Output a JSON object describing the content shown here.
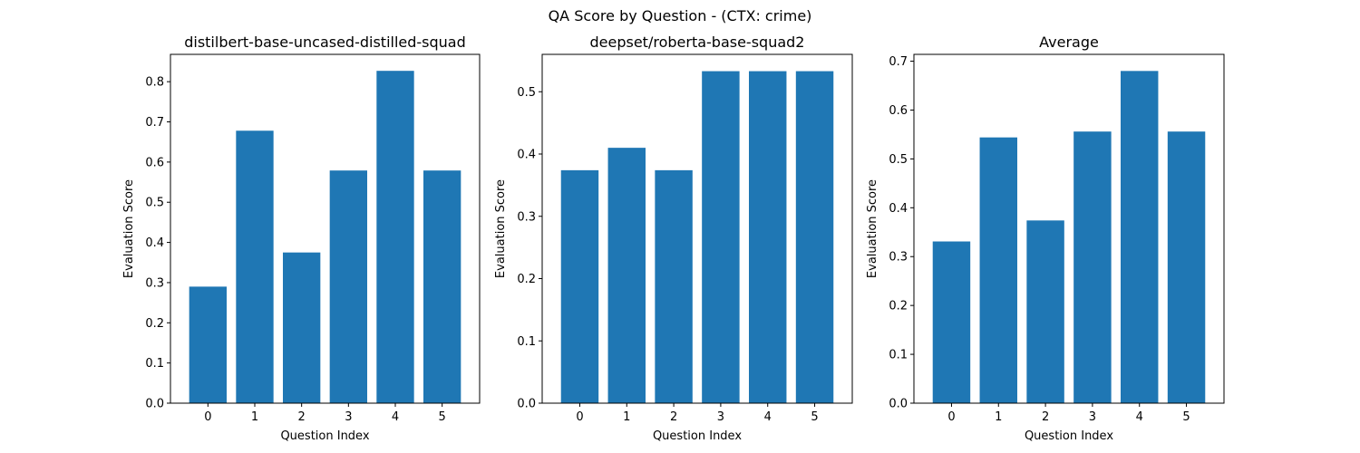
{
  "figure": {
    "title": "QA Score by Question - (CTX: crime)"
  },
  "colors": {
    "bar": "#1f77b4",
    "axis": "#000000",
    "background": "#ffffff"
  },
  "chart_data": [
    {
      "type": "bar",
      "title": "distilbert-base-uncased-distilled-squad",
      "xlabel": "Question Index",
      "ylabel": "Evaluation Score",
      "categories": [
        "0",
        "1",
        "2",
        "3",
        "4",
        "5"
      ],
      "values": [
        0.29,
        0.678,
        0.375,
        0.579,
        0.827,
        0.579
      ],
      "ylim": [
        0,
        0.868
      ],
      "yticks": [
        0.0,
        0.1,
        0.2,
        0.3,
        0.4,
        0.5,
        0.6,
        0.7,
        0.8
      ],
      "ytick_labels": [
        "0.0",
        "0.1",
        "0.2",
        "0.3",
        "0.4",
        "0.5",
        "0.6",
        "0.7",
        "0.8"
      ],
      "grid": false,
      "legend": "none"
    },
    {
      "type": "bar",
      "title": "deepset/roberta-base-squad2",
      "xlabel": "Question Index",
      "ylabel": "Evaluation Score",
      "categories": [
        "0",
        "1",
        "2",
        "3",
        "4",
        "5"
      ],
      "values": [
        0.374,
        0.41,
        0.374,
        0.533,
        0.533,
        0.533
      ],
      "ylim": [
        0,
        0.56
      ],
      "yticks": [
        0.0,
        0.1,
        0.2,
        0.3,
        0.4,
        0.5
      ],
      "ytick_labels": [
        "0.0",
        "0.1",
        "0.2",
        "0.3",
        "0.4",
        "0.5"
      ],
      "grid": false,
      "legend": "none"
    },
    {
      "type": "bar",
      "title": "Average",
      "xlabel": "Question Index",
      "ylabel": "Evaluation Score",
      "categories": [
        "0",
        "1",
        "2",
        "3",
        "4",
        "5"
      ],
      "values": [
        0.331,
        0.544,
        0.374,
        0.556,
        0.68,
        0.556
      ],
      "ylim": [
        0,
        0.714
      ],
      "yticks": [
        0.0,
        0.1,
        0.2,
        0.3,
        0.4,
        0.5,
        0.6,
        0.7
      ],
      "ytick_labels": [
        "0.0",
        "0.1",
        "0.2",
        "0.3",
        "0.4",
        "0.5",
        "0.6",
        "0.7"
      ],
      "grid": false,
      "legend": "none"
    }
  ]
}
